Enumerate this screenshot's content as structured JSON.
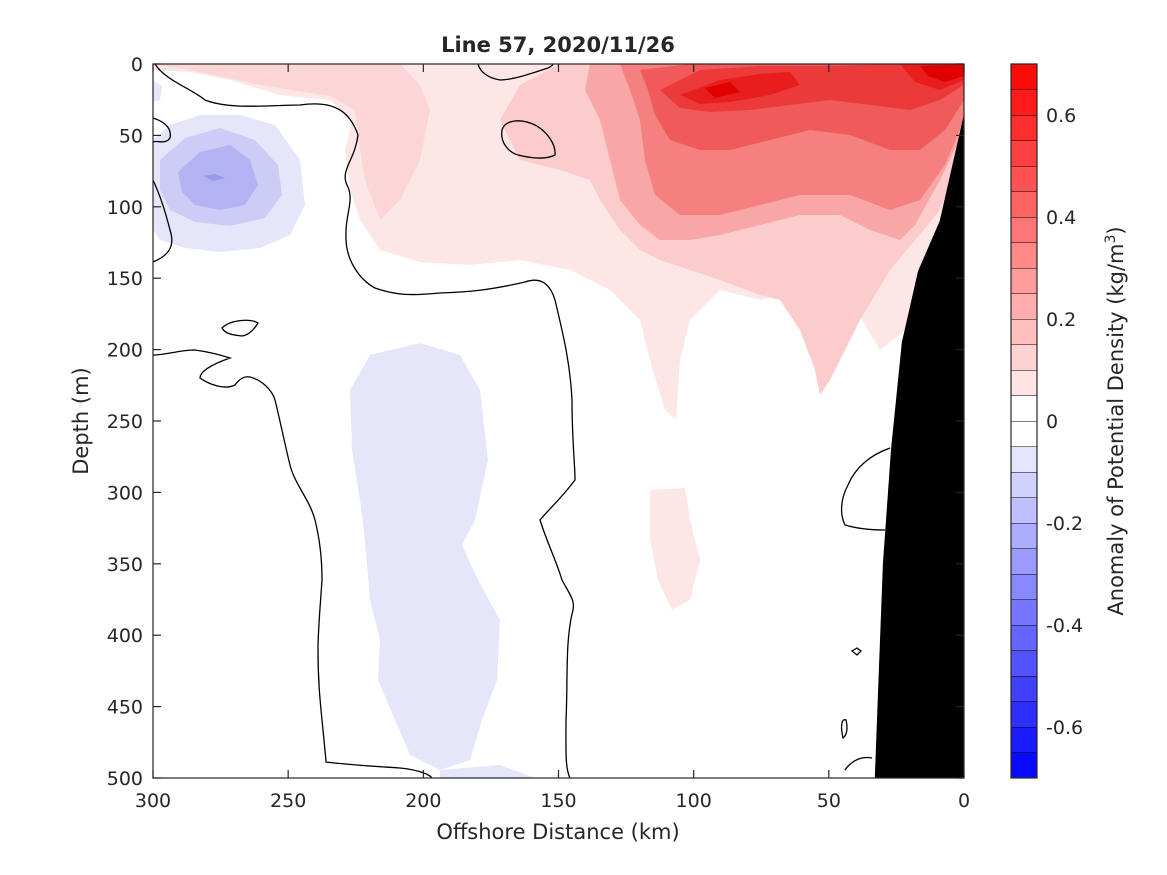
{
  "chart_data": {
    "type": "heatmap",
    "subtype": "filled-contour",
    "title": "Line 57, 2020/11/26",
    "xlabel": "Offshore Distance (km)",
    "ylabel": "Depth (m)",
    "xlim": [
      300,
      0
    ],
    "ylim": [
      500,
      0
    ],
    "x_reversed": true,
    "y_reversed": true,
    "xticks": [
      "300",
      "250",
      "200",
      "150",
      "100",
      "50",
      "0"
    ],
    "yticks": [
      "0",
      "50",
      "100",
      "150",
      "200",
      "250",
      "300",
      "350",
      "400",
      "450",
      "500"
    ],
    "grid": false,
    "colorbar": {
      "label_prefix": "Anomaly of Potential Density (kg/m",
      "label_sup": "3",
      "label_suffix": ")",
      "range": [
        -0.7,
        0.7
      ],
      "ticks": [
        "-0.6",
        "-0.4",
        "-0.2",
        "0",
        "0.2",
        "0.4",
        "0.6"
      ],
      "levels": [
        -0.7,
        -0.65,
        -0.6,
        -0.55,
        -0.5,
        -0.45,
        -0.4,
        -0.35,
        -0.3,
        -0.25,
        -0.2,
        -0.15,
        -0.1,
        -0.05,
        0,
        0.05,
        0.1,
        0.15,
        0.2,
        0.25,
        0.3,
        0.35,
        0.4,
        0.45,
        0.5,
        0.55,
        0.6,
        0.65,
        0.7
      ],
      "colormap": "blue-white-red"
    },
    "features": [
      {
        "kind": "max-anomaly",
        "x": 10,
        "y": 8,
        "value": 0.7
      },
      {
        "kind": "positive-anomaly",
        "x": 90,
        "y": 20,
        "value": 0.6
      },
      {
        "kind": "negative-anomaly",
        "x": 272,
        "y": 80,
        "value": -0.2
      },
      {
        "kind": "negative-anomaly",
        "x": 185,
        "y": 330,
        "value": -0.05
      }
    ],
    "bathymetry": {
      "color": "#000000",
      "boundary": [
        [
          0,
          35
        ],
        [
          9,
          110
        ],
        [
          17,
          145
        ],
        [
          23,
          195
        ],
        [
          27,
          270
        ],
        [
          30,
          350
        ],
        [
          33,
          500
        ]
      ]
    }
  }
}
